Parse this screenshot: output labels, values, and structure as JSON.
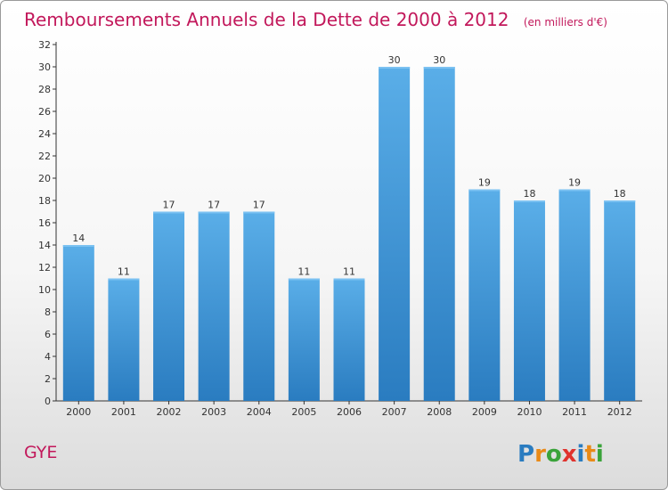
{
  "chart_data": {
    "type": "bar",
    "title": "Remboursements Annuels de la Dette de 2000 à 2012",
    "subtitle": "(en milliers d'€)",
    "categories": [
      "2000",
      "2001",
      "2002",
      "2003",
      "2004",
      "2005",
      "2006",
      "2007",
      "2008",
      "2009",
      "2010",
      "2011",
      "2012"
    ],
    "values": [
      14,
      11,
      17,
      17,
      17,
      11,
      11,
      30,
      30,
      19,
      18,
      19,
      18
    ],
    "ylim": [
      0,
      32
    ],
    "yticks": [
      0,
      2,
      4,
      6,
      8,
      10,
      12,
      14,
      16,
      18,
      20,
      22,
      24,
      26,
      28,
      30,
      32
    ],
    "xlabel": "",
    "ylabel": "",
    "grid": false,
    "legend": "none"
  },
  "location": "GYE",
  "logo": "Proxiti",
  "colors": {
    "title": "#c2185b",
    "bar_top": "#5aaee8",
    "bar_bottom": "#2a7cc0",
    "axis": "#333333",
    "location": "#c2185b"
  }
}
